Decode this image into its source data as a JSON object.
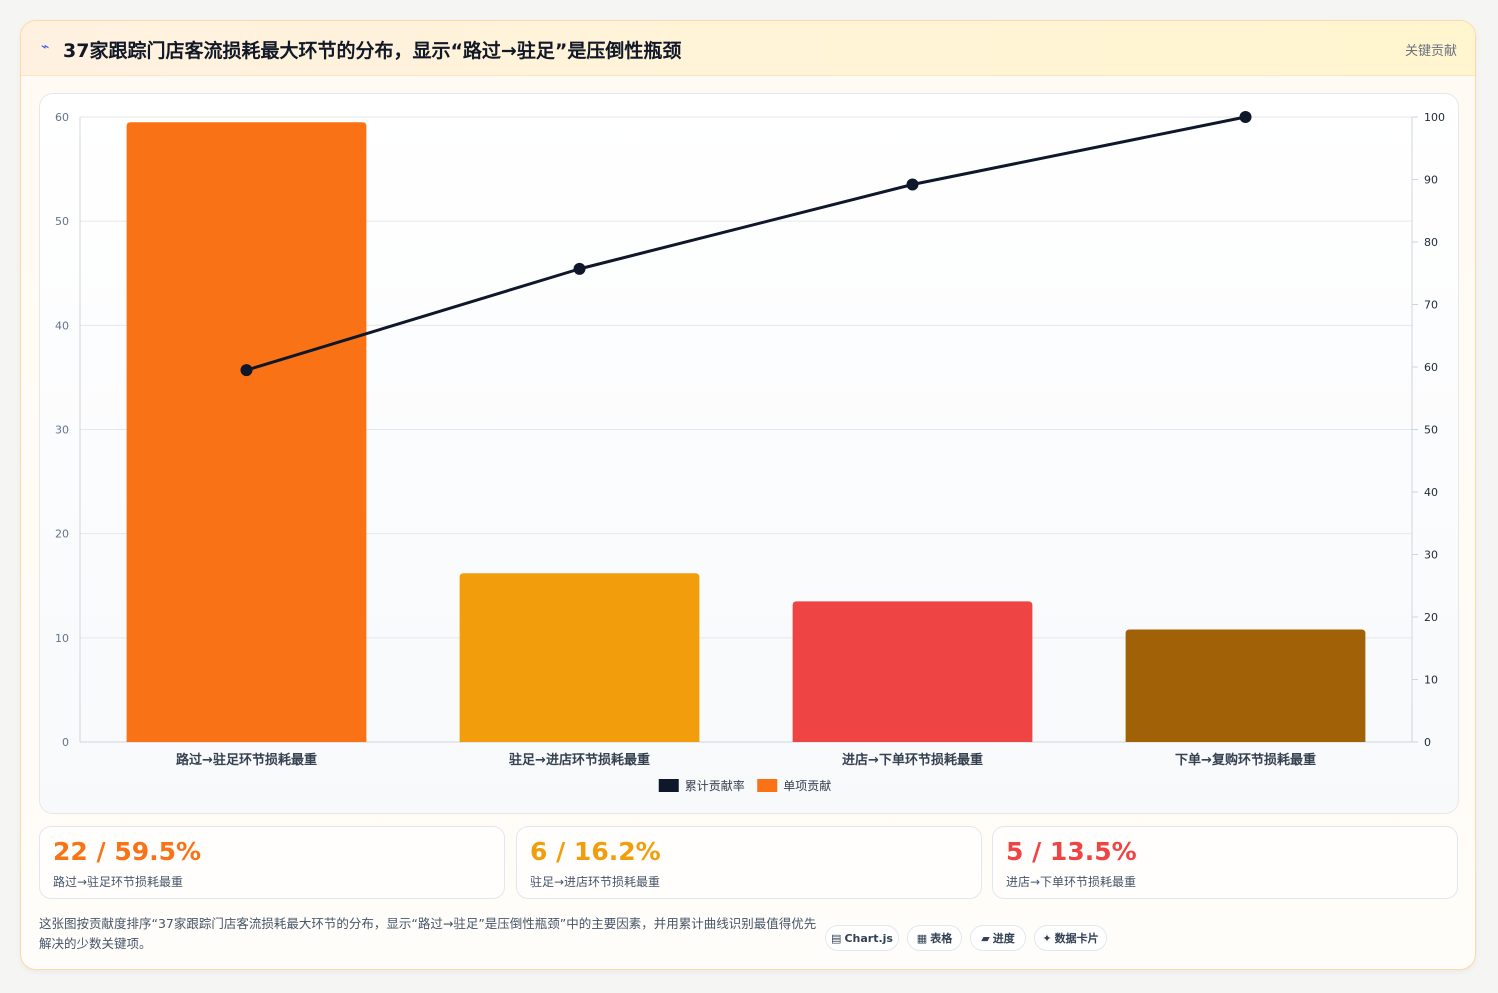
{
  "header": {
    "icon": "⌁",
    "title": "37家跟踪门店客流损耗最大环节的分布，显示“路过→驻足”是压倒性瓶颈",
    "tag": "关键贡献"
  },
  "chart_data": {
    "type": "bar",
    "categories": [
      "路过→驻足环节损耗最重",
      "驻足→进店环节损耗最重",
      "进店→下单环节损耗最重",
      "下单→复购环节损耗最重"
    ],
    "series": [
      {
        "name": "单项贡献",
        "type": "bar",
        "axis": "left",
        "values": [
          59.5,
          16.2,
          13.5,
          10.8
        ],
        "colors": [
          "#f97316",
          "#f29e0c",
          "#ef4444",
          "#a16207"
        ]
      },
      {
        "name": "累计贡献率",
        "type": "line",
        "axis": "right",
        "values": [
          59.5,
          75.7,
          89.2,
          100
        ],
        "color": "#0f172a"
      }
    ],
    "ylim": [
      0,
      60
    ],
    "yticks": [
      0,
      10,
      20,
      30,
      40,
      50,
      60
    ],
    "y2lim": [
      0,
      100
    ],
    "y2ticks": [
      0,
      10,
      20,
      30,
      40,
      50,
      60,
      70,
      80,
      90,
      100
    ],
    "legend": [
      {
        "label": "累计贡献率",
        "color": "#0f172a"
      },
      {
        "label": "单项贡献",
        "color": "#f97316"
      }
    ],
    "legend_position": "bottom",
    "grid": true
  },
  "stats": [
    {
      "value": "22 / 59.5%",
      "label": "路过→驻足环节损耗最重",
      "color": "#f97316"
    },
    {
      "value": "6 / 16.2%",
      "label": "驻足→进店环节损耗最重",
      "color": "#f29e0c"
    },
    {
      "value": "5 / 13.5%",
      "label": "进店→下单环节损耗最重",
      "color": "#ef4444"
    }
  ],
  "footer": {
    "text": "这张图按贡献度排序“37家跟踪门店客流损耗最大环节的分布，显示“路过→驻足”是压倒性瓶颈”中的主要因素，并用累计曲线识别最值得优先解决的少数关键项。",
    "chips": [
      {
        "icon": "▤",
        "label": "Chart.js"
      },
      {
        "icon": "▦",
        "label": "表格"
      },
      {
        "icon": "▰",
        "label": "进度"
      },
      {
        "icon": "✦",
        "label": "数据卡片"
      }
    ]
  }
}
